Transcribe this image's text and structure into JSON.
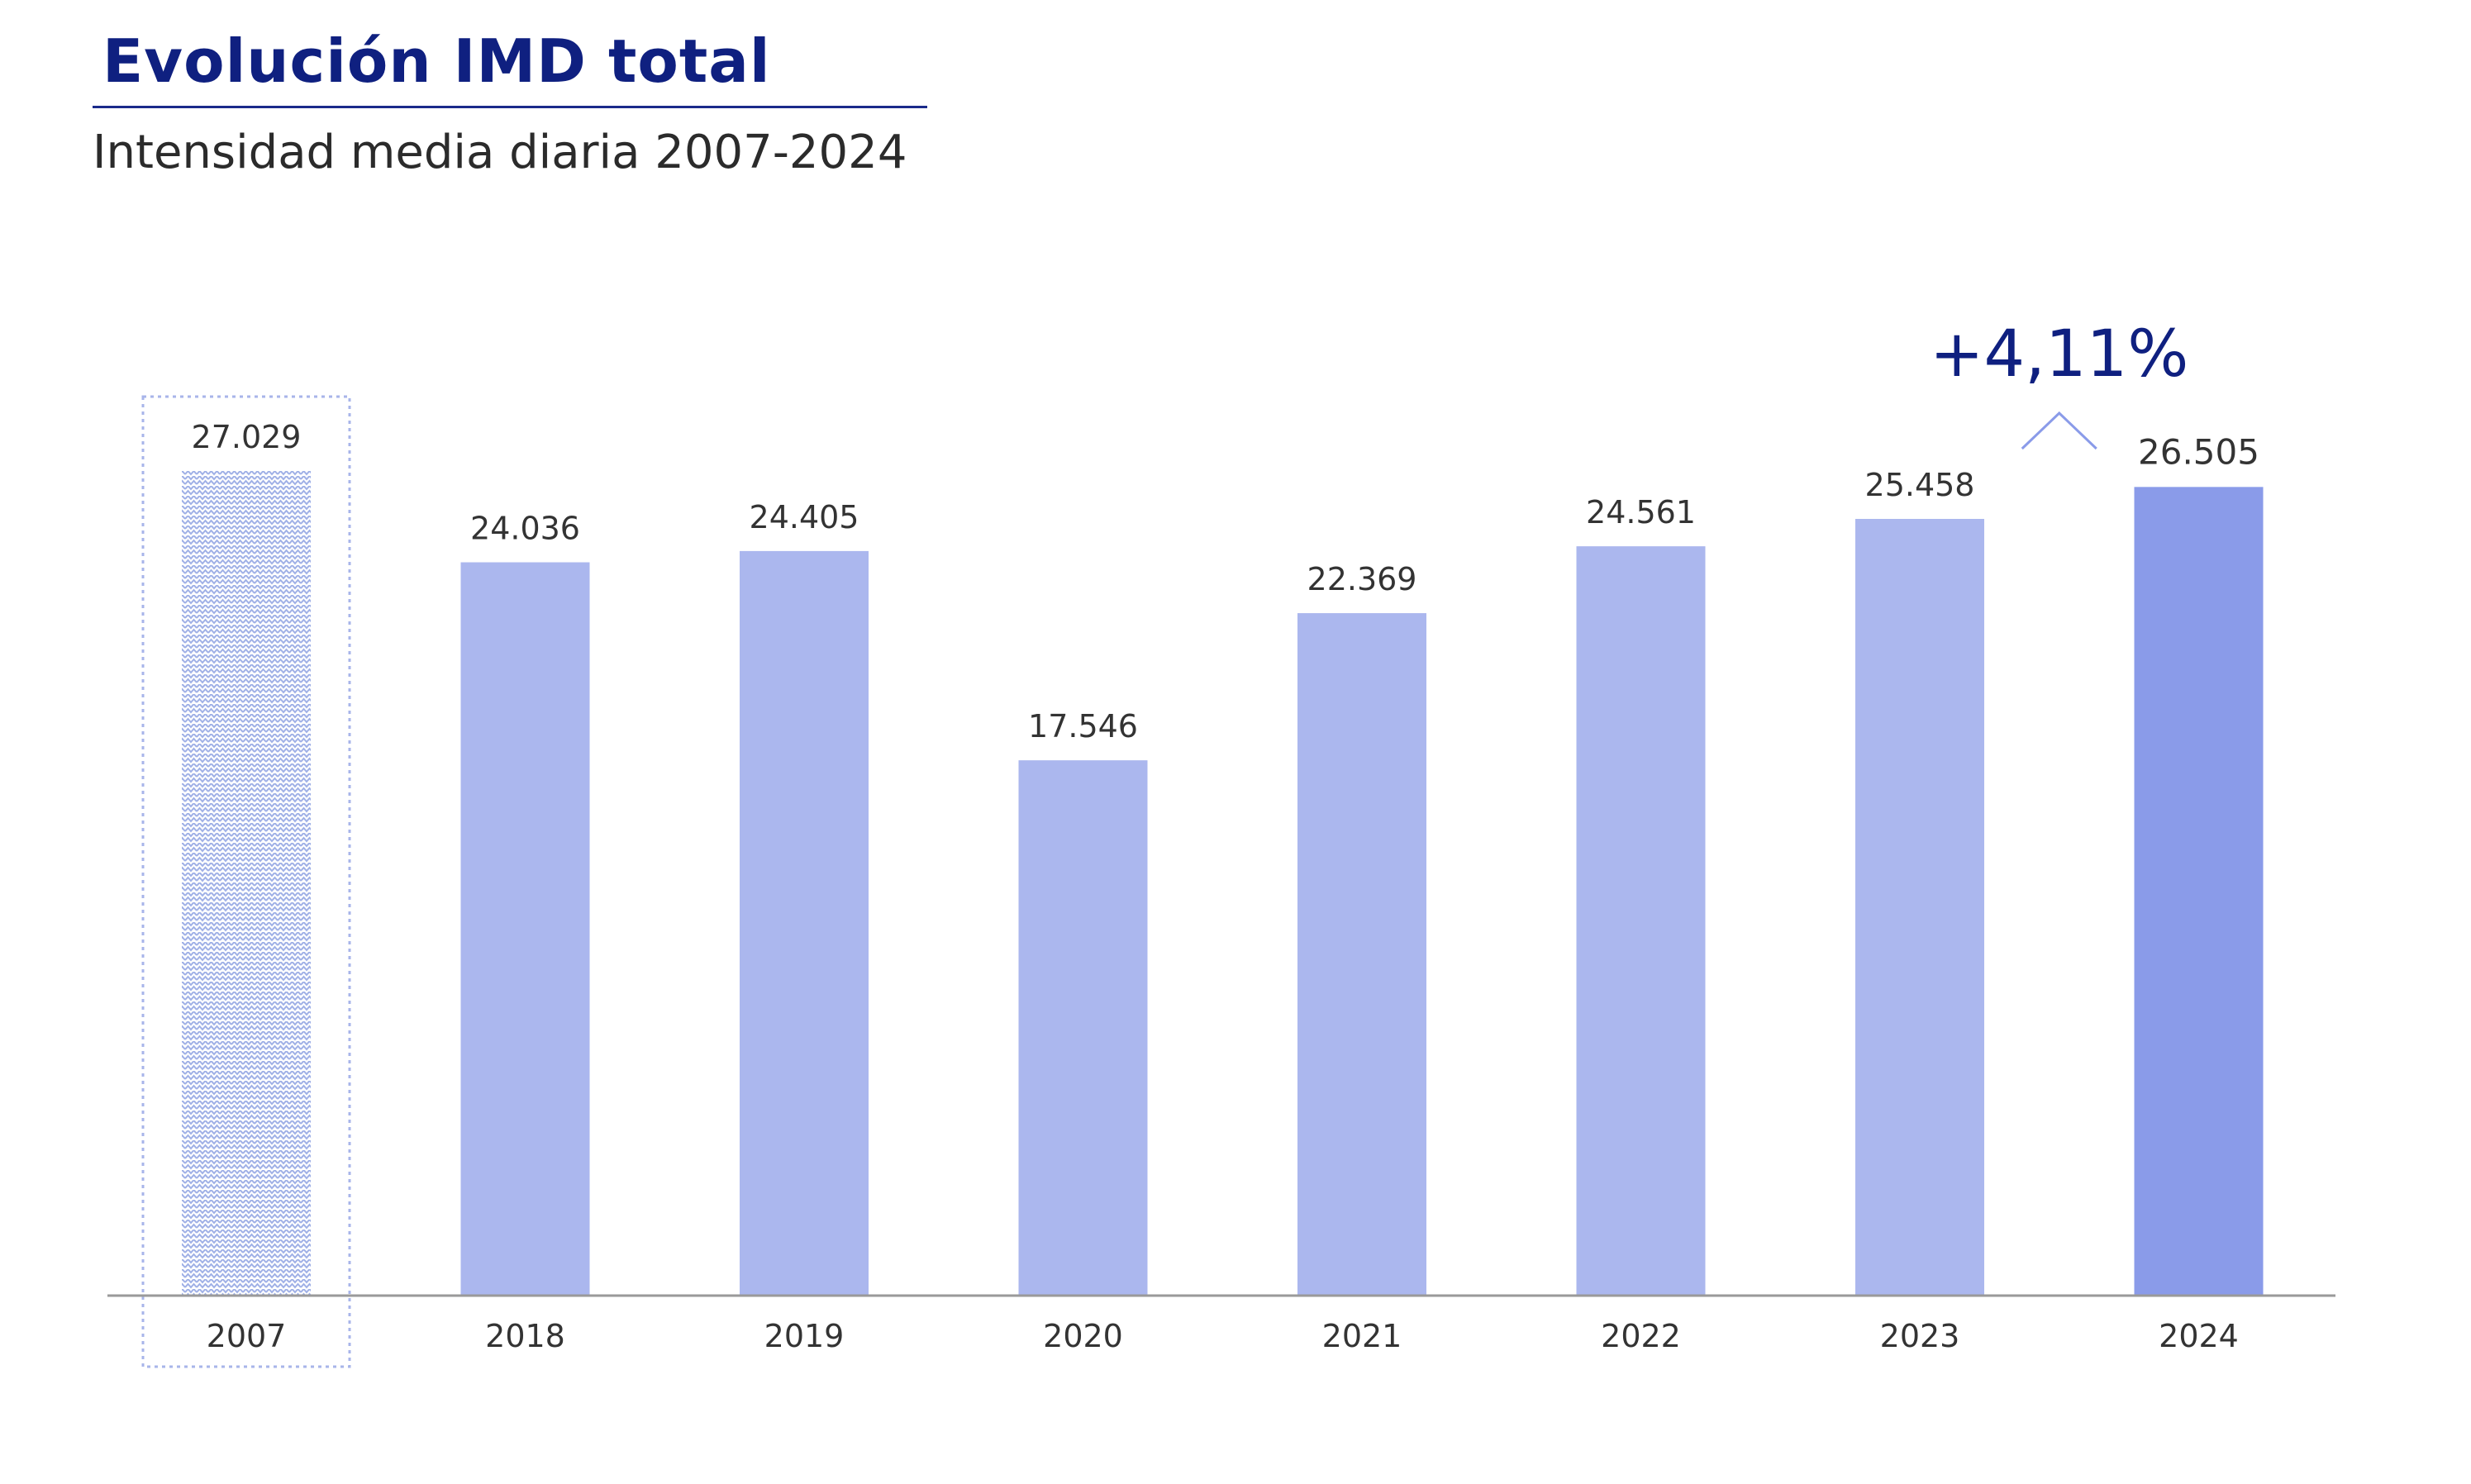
{
  "header": {
    "title": "Evolución IMD total",
    "subtitle": "Intensidad media diaria 2007-2024"
  },
  "chart_data": {
    "type": "bar",
    "title": "Evolución IMD total",
    "subtitle": "Intensidad media diaria 2007-2024",
    "categories": [
      "2007",
      "2018",
      "2019",
      "2020",
      "2021",
      "2022",
      "2023",
      "2024"
    ],
    "values": [
      27029,
      24036,
      24405,
      17546,
      22369,
      24561,
      25458,
      26505
    ],
    "value_labels": [
      "27.029",
      "24.036",
      "24.405",
      "17.546",
      "22.369",
      "24.561",
      "25.458",
      "26.505"
    ],
    "highlight_category": "2007",
    "emphasis_category": "2024",
    "annotation": "+4,11%",
    "ylim": [
      0,
      27029
    ],
    "grid": false,
    "colors": {
      "bar": "#abb7ee",
      "bar_last": "#8a9be9",
      "pattern": "#9fb0e6",
      "box": "#a8b5ea",
      "axis": "#9a9a9a",
      "annotation": "#0f2080",
      "label": "#333333"
    }
  }
}
